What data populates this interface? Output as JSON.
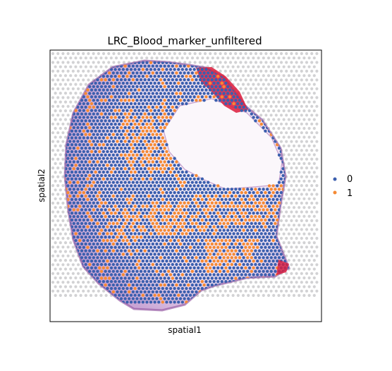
{
  "chart_data": {
    "type": "scatter",
    "title": "LRC_Blood_marker_unfiltered",
    "xlabel": "spatial1",
    "ylabel": "spatial2",
    "xticks": [],
    "yticks": [],
    "grid": false,
    "legend": {
      "placement": "right",
      "entries": [
        {
          "label": "0",
          "color": "#3b5fae"
        },
        {
          "label": "1",
          "color": "#f58a34"
        }
      ]
    },
    "colors": {
      "category_0": "#3b5fae",
      "category_1": "#f58a34",
      "background_spots": "#d2d2d4",
      "tissue_stain_light": "#c6a8d2",
      "tissue_stain_dark": "#7a3c8a",
      "blood_red": "#dc1b3b"
    },
    "series": [
      {
        "name": "0",
        "description_color": "#3b5fae"
      },
      {
        "name": "1",
        "description_color": "#f58a34"
      }
    ]
  }
}
